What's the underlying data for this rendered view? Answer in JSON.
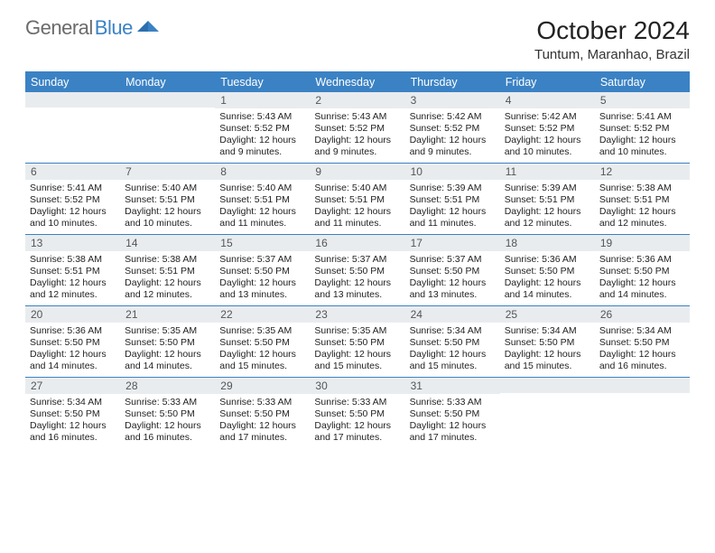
{
  "logo": {
    "text1": "General",
    "text2": "Blue"
  },
  "title": "October 2024",
  "location": "Tuntum, Maranhao, Brazil",
  "colors": {
    "accent": "#3b82c4",
    "header_bg": "#3b82c4",
    "daynum_bg": "#e9ecef",
    "text": "#222222",
    "logo_gray": "#6b6b6b"
  },
  "day_headers": [
    "Sunday",
    "Monday",
    "Tuesday",
    "Wednesday",
    "Thursday",
    "Friday",
    "Saturday"
  ],
  "weeks": [
    [
      {
        "n": "",
        "lines": []
      },
      {
        "n": "",
        "lines": []
      },
      {
        "n": "1",
        "lines": [
          "Sunrise: 5:43 AM",
          "Sunset: 5:52 PM",
          "Daylight: 12 hours",
          "and 9 minutes."
        ]
      },
      {
        "n": "2",
        "lines": [
          "Sunrise: 5:43 AM",
          "Sunset: 5:52 PM",
          "Daylight: 12 hours",
          "and 9 minutes."
        ]
      },
      {
        "n": "3",
        "lines": [
          "Sunrise: 5:42 AM",
          "Sunset: 5:52 PM",
          "Daylight: 12 hours",
          "and 9 minutes."
        ]
      },
      {
        "n": "4",
        "lines": [
          "Sunrise: 5:42 AM",
          "Sunset: 5:52 PM",
          "Daylight: 12 hours",
          "and 10 minutes."
        ]
      },
      {
        "n": "5",
        "lines": [
          "Sunrise: 5:41 AM",
          "Sunset: 5:52 PM",
          "Daylight: 12 hours",
          "and 10 minutes."
        ]
      }
    ],
    [
      {
        "n": "6",
        "lines": [
          "Sunrise: 5:41 AM",
          "Sunset: 5:52 PM",
          "Daylight: 12 hours",
          "and 10 minutes."
        ]
      },
      {
        "n": "7",
        "lines": [
          "Sunrise: 5:40 AM",
          "Sunset: 5:51 PM",
          "Daylight: 12 hours",
          "and 10 minutes."
        ]
      },
      {
        "n": "8",
        "lines": [
          "Sunrise: 5:40 AM",
          "Sunset: 5:51 PM",
          "Daylight: 12 hours",
          "and 11 minutes."
        ]
      },
      {
        "n": "9",
        "lines": [
          "Sunrise: 5:40 AM",
          "Sunset: 5:51 PM",
          "Daylight: 12 hours",
          "and 11 minutes."
        ]
      },
      {
        "n": "10",
        "lines": [
          "Sunrise: 5:39 AM",
          "Sunset: 5:51 PM",
          "Daylight: 12 hours",
          "and 11 minutes."
        ]
      },
      {
        "n": "11",
        "lines": [
          "Sunrise: 5:39 AM",
          "Sunset: 5:51 PM",
          "Daylight: 12 hours",
          "and 12 minutes."
        ]
      },
      {
        "n": "12",
        "lines": [
          "Sunrise: 5:38 AM",
          "Sunset: 5:51 PM",
          "Daylight: 12 hours",
          "and 12 minutes."
        ]
      }
    ],
    [
      {
        "n": "13",
        "lines": [
          "Sunrise: 5:38 AM",
          "Sunset: 5:51 PM",
          "Daylight: 12 hours",
          "and 12 minutes."
        ]
      },
      {
        "n": "14",
        "lines": [
          "Sunrise: 5:38 AM",
          "Sunset: 5:51 PM",
          "Daylight: 12 hours",
          "and 12 minutes."
        ]
      },
      {
        "n": "15",
        "lines": [
          "Sunrise: 5:37 AM",
          "Sunset: 5:50 PM",
          "Daylight: 12 hours",
          "and 13 minutes."
        ]
      },
      {
        "n": "16",
        "lines": [
          "Sunrise: 5:37 AM",
          "Sunset: 5:50 PM",
          "Daylight: 12 hours",
          "and 13 minutes."
        ]
      },
      {
        "n": "17",
        "lines": [
          "Sunrise: 5:37 AM",
          "Sunset: 5:50 PM",
          "Daylight: 12 hours",
          "and 13 minutes."
        ]
      },
      {
        "n": "18",
        "lines": [
          "Sunrise: 5:36 AM",
          "Sunset: 5:50 PM",
          "Daylight: 12 hours",
          "and 14 minutes."
        ]
      },
      {
        "n": "19",
        "lines": [
          "Sunrise: 5:36 AM",
          "Sunset: 5:50 PM",
          "Daylight: 12 hours",
          "and 14 minutes."
        ]
      }
    ],
    [
      {
        "n": "20",
        "lines": [
          "Sunrise: 5:36 AM",
          "Sunset: 5:50 PM",
          "Daylight: 12 hours",
          "and 14 minutes."
        ]
      },
      {
        "n": "21",
        "lines": [
          "Sunrise: 5:35 AM",
          "Sunset: 5:50 PM",
          "Daylight: 12 hours",
          "and 14 minutes."
        ]
      },
      {
        "n": "22",
        "lines": [
          "Sunrise: 5:35 AM",
          "Sunset: 5:50 PM",
          "Daylight: 12 hours",
          "and 15 minutes."
        ]
      },
      {
        "n": "23",
        "lines": [
          "Sunrise: 5:35 AM",
          "Sunset: 5:50 PM",
          "Daylight: 12 hours",
          "and 15 minutes."
        ]
      },
      {
        "n": "24",
        "lines": [
          "Sunrise: 5:34 AM",
          "Sunset: 5:50 PM",
          "Daylight: 12 hours",
          "and 15 minutes."
        ]
      },
      {
        "n": "25",
        "lines": [
          "Sunrise: 5:34 AM",
          "Sunset: 5:50 PM",
          "Daylight: 12 hours",
          "and 15 minutes."
        ]
      },
      {
        "n": "26",
        "lines": [
          "Sunrise: 5:34 AM",
          "Sunset: 5:50 PM",
          "Daylight: 12 hours",
          "and 16 minutes."
        ]
      }
    ],
    [
      {
        "n": "27",
        "lines": [
          "Sunrise: 5:34 AM",
          "Sunset: 5:50 PM",
          "Daylight: 12 hours",
          "and 16 minutes."
        ]
      },
      {
        "n": "28",
        "lines": [
          "Sunrise: 5:33 AM",
          "Sunset: 5:50 PM",
          "Daylight: 12 hours",
          "and 16 minutes."
        ]
      },
      {
        "n": "29",
        "lines": [
          "Sunrise: 5:33 AM",
          "Sunset: 5:50 PM",
          "Daylight: 12 hours",
          "and 17 minutes."
        ]
      },
      {
        "n": "30",
        "lines": [
          "Sunrise: 5:33 AM",
          "Sunset: 5:50 PM",
          "Daylight: 12 hours",
          "and 17 minutes."
        ]
      },
      {
        "n": "31",
        "lines": [
          "Sunrise: 5:33 AM",
          "Sunset: 5:50 PM",
          "Daylight: 12 hours",
          "and 17 minutes."
        ]
      },
      {
        "n": "",
        "lines": []
      },
      {
        "n": "",
        "lines": []
      }
    ]
  ]
}
